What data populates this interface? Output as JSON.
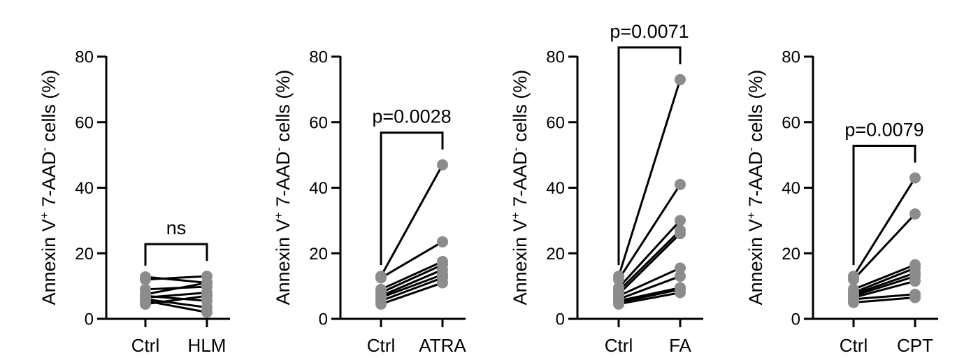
{
  "chart_data": [
    {
      "type": "paired-dot",
      "ylabel": {
        "main_1": "Annexin V",
        "sup_1": "+",
        "main_2": " 7-AAD",
        "sup_2": "-",
        "main_3": " cells (%)"
      },
      "yticks": [
        "0",
        "20",
        "40",
        "60",
        "80"
      ],
      "ylim": [
        0,
        80
      ],
      "categories": [
        "Ctrl",
        "HLM"
      ],
      "annotation": "ns",
      "pairs": [
        [
          12.8,
          11.0
        ],
        [
          12.0,
          13.0
        ],
        [
          9.0,
          9.8
        ],
        [
          7.5,
          11.0
        ],
        [
          7.0,
          5.5
        ],
        [
          6.5,
          8.0
        ],
        [
          6.0,
          3.5
        ],
        [
          5.5,
          2.0
        ],
        [
          4.5,
          7.0
        ]
      ]
    },
    {
      "type": "paired-dot",
      "ylabel": {
        "main_1": "Annexin V",
        "sup_1": "+",
        "main_2": " 7-AAD",
        "sup_2": "-",
        "main_3": " cells (%)"
      },
      "yticks": [
        "0",
        "20",
        "40",
        "60",
        "80"
      ],
      "ylim": [
        0,
        80
      ],
      "categories": [
        "Ctrl",
        "ATRA"
      ],
      "annotation": "p=0.0028",
      "pairs": [
        [
          13.0,
          47.0
        ],
        [
          12.5,
          23.5
        ],
        [
          9.0,
          17.5
        ],
        [
          8.0,
          16.5
        ],
        [
          7.0,
          15.0
        ],
        [
          6.5,
          13.5
        ],
        [
          5.5,
          12.5
        ],
        [
          4.5,
          11.0
        ]
      ]
    },
    {
      "type": "paired-dot",
      "ylabel": {
        "main_1": "Annexin V",
        "sup_1": "+",
        "main_2": " 7-AAD",
        "sup_2": "-",
        "main_3": " cells (%)"
      },
      "yticks": [
        "0",
        "20",
        "40",
        "60",
        "80"
      ],
      "ylim": [
        0,
        80
      ],
      "categories": [
        "Ctrl",
        "FA"
      ],
      "annotation": "p=0.0071",
      "pairs": [
        [
          13.0,
          73.0
        ],
        [
          12.0,
          41.0
        ],
        [
          9.5,
          30.0
        ],
        [
          8.5,
          27.0
        ],
        [
          7.5,
          26.0
        ],
        [
          7.0,
          15.5
        ],
        [
          6.0,
          13.0
        ],
        [
          5.5,
          9.5
        ],
        [
          5.0,
          9.0
        ],
        [
          4.5,
          8.0
        ]
      ]
    },
    {
      "type": "paired-dot",
      "ylabel": {
        "main_1": "Annexin V",
        "sup_1": "+",
        "main_2": " 7-AAD",
        "sup_2": "-",
        "main_3": " cells (%)"
      },
      "yticks": [
        "0",
        "20",
        "40",
        "60",
        "80"
      ],
      "ylim": [
        0,
        80
      ],
      "categories": [
        "Ctrl",
        "CPT"
      ],
      "annotation": "p=0.0079",
      "pairs": [
        [
          13.0,
          43.0
        ],
        [
          12.0,
          32.0
        ],
        [
          9.0,
          16.5
        ],
        [
          8.0,
          15.5
        ],
        [
          7.5,
          14.0
        ],
        [
          7.0,
          13.0
        ],
        [
          6.5,
          11.5
        ],
        [
          6.0,
          7.5
        ],
        [
          5.0,
          6.5
        ]
      ]
    }
  ]
}
